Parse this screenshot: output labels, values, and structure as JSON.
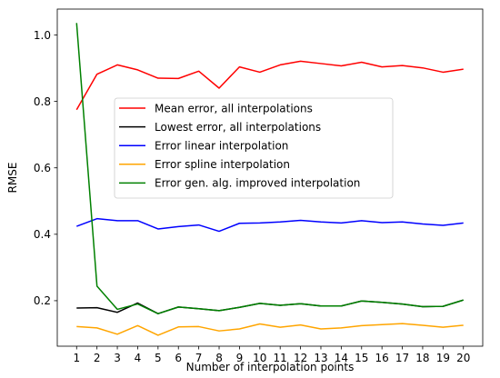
{
  "chart_data": {
    "type": "line",
    "xlabel": "Number of interpolation points",
    "ylabel": "RMSE",
    "x": [
      1,
      2,
      3,
      4,
      5,
      6,
      7,
      8,
      9,
      10,
      11,
      12,
      13,
      14,
      15,
      16,
      17,
      18,
      19,
      20
    ],
    "xticks": [
      1,
      2,
      3,
      4,
      5,
      6,
      7,
      8,
      9,
      10,
      11,
      12,
      13,
      14,
      15,
      16,
      17,
      18,
      19,
      20
    ],
    "xlim": [
      0.05,
      20.95
    ],
    "ylim": [
      0.063,
      1.078
    ],
    "yticks": [
      0.2,
      0.4,
      0.6,
      0.8,
      1.0
    ],
    "ytick_labels": [
      "0.2",
      "0.4",
      "0.6",
      "0.8",
      "1.0"
    ],
    "grid": false,
    "legend_placement": "center-left",
    "series": [
      {
        "name": "Mean error, all interpolations",
        "color": "#ff0000",
        "values": [
          0.775,
          0.882,
          0.91,
          0.895,
          0.87,
          0.869,
          0.891,
          0.84,
          0.904,
          0.888,
          0.91,
          0.921,
          0.914,
          0.907,
          0.918,
          0.904,
          0.908,
          0.901,
          0.888,
          0.897
        ]
      },
      {
        "name": "Lowest error, all interpolations",
        "color": "#000000",
        "values": [
          0.178,
          0.179,
          0.165,
          0.193,
          0.161,
          0.181,
          0.176,
          0.17,
          0.18,
          0.192,
          0.186,
          0.191,
          0.184,
          0.184,
          0.199,
          0.195,
          0.19,
          0.182,
          0.183,
          0.202
        ]
      },
      {
        "name": "Error linear interpolation",
        "color": "#0000ff",
        "values": [
          0.424,
          0.447,
          0.441,
          0.441,
          0.416,
          0.423,
          0.428,
          0.409,
          0.433,
          0.434,
          0.437,
          0.442,
          0.437,
          0.434,
          0.441,
          0.435,
          0.437,
          0.431,
          0.427,
          0.434
        ]
      },
      {
        "name": "Error spline interpolation",
        "color": "#ffa500",
        "values": [
          0.122,
          0.118,
          0.099,
          0.125,
          0.096,
          0.121,
          0.122,
          0.109,
          0.115,
          0.13,
          0.12,
          0.127,
          0.115,
          0.118,
          0.125,
          0.128,
          0.131,
          0.126,
          0.12,
          0.126
        ]
      },
      {
        "name": "Error gen. alg. improved interpolation",
        "color": "#008000",
        "values": [
          1.036,
          0.244,
          0.174,
          0.19,
          0.161,
          0.181,
          0.176,
          0.17,
          0.18,
          0.192,
          0.186,
          0.191,
          0.184,
          0.184,
          0.199,
          0.195,
          0.19,
          0.182,
          0.183,
          0.202
        ]
      }
    ]
  }
}
